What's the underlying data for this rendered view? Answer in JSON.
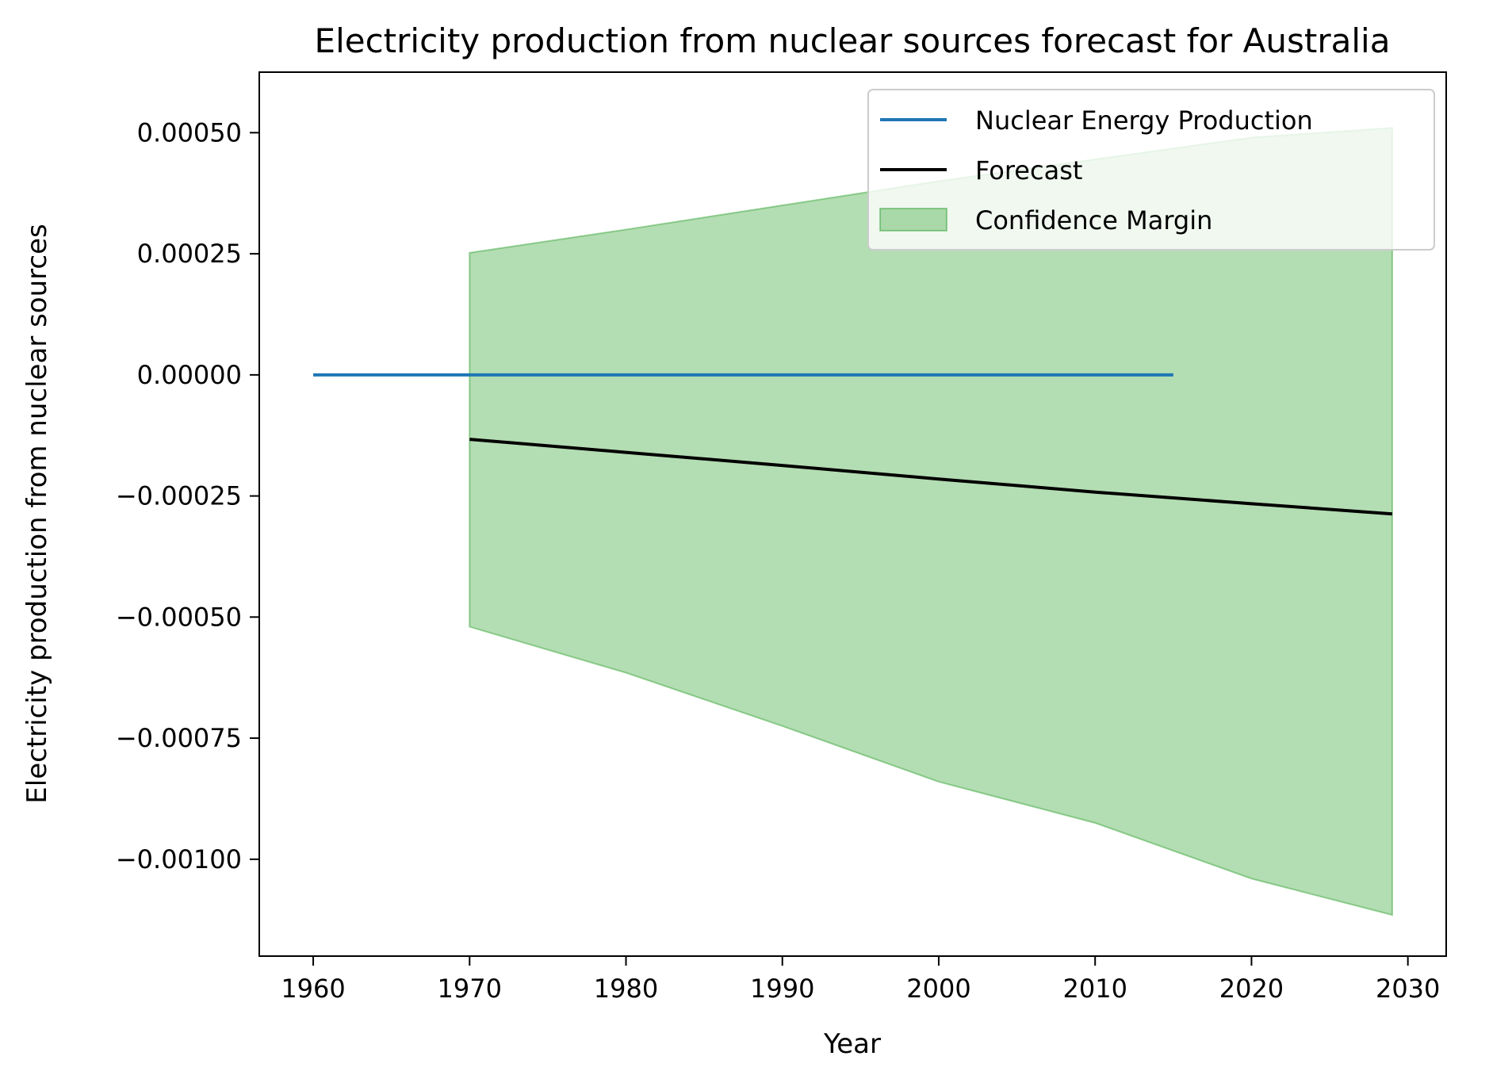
{
  "chart_data": {
    "type": "line",
    "title": "Electricity production from nuclear sources forecast for Australia",
    "xlabel": "Year",
    "ylabel": "Electricity production from nuclear sources",
    "xlim": [
      1956.55,
      2032.45
    ],
    "ylim": [
      -0.0012,
      0.000625
    ],
    "xticks": [
      1960,
      1970,
      1980,
      1990,
      2000,
      2010,
      2020,
      2030
    ],
    "xtick_labels": [
      "1960",
      "1970",
      "1980",
      "1990",
      "2000",
      "2010",
      "2020",
      "2030"
    ],
    "yticks": [
      0.0005,
      0.00025,
      0.0,
      -0.00025,
      -0.0005,
      -0.00075,
      -0.001
    ],
    "ytick_labels": [
      "0.00050",
      "0.00025",
      "0.00000",
      "−0.00025",
      "−0.00050",
      "−0.00075",
      "−0.00100"
    ],
    "grid": false,
    "legend_position": "top-right",
    "series": [
      {
        "name": "Nuclear Energy Production",
        "kind": "line",
        "color": "#1f77b4",
        "x": [
          1960,
          2015
        ],
        "y": [
          0.0,
          0.0
        ]
      },
      {
        "name": "Forecast",
        "kind": "line",
        "color": "#000000",
        "x": [
          1970,
          1980,
          1990,
          2000,
          2010,
          2020,
          2029
        ],
        "y": [
          -0.000133,
          -0.00016,
          -0.000187,
          -0.000215,
          -0.000242,
          -0.000266,
          -0.000287
        ]
      },
      {
        "name": "Confidence Margin",
        "kind": "band",
        "color": "#2ca02c",
        "x": [
          1970,
          1980,
          1990,
          2000,
          2010,
          2020,
          2029
        ],
        "upper": [
          0.000252,
          0.0003,
          0.00035,
          0.0004,
          0.000445,
          0.00049,
          0.00051
        ],
        "lower": [
          -0.00052,
          -0.000615,
          -0.000725,
          -0.00084,
          -0.000925,
          -0.00104,
          -0.001115
        ]
      }
    ]
  }
}
